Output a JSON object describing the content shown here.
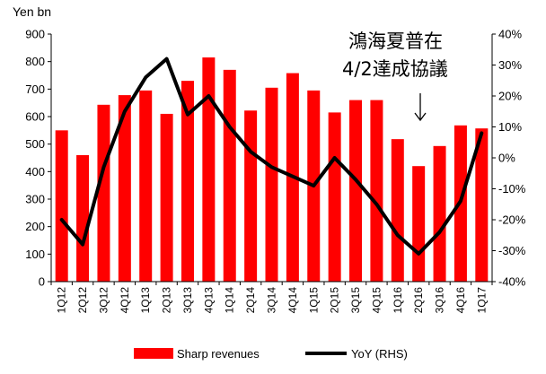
{
  "chart_data": {
    "type": "bar",
    "left_axis_unit": "Yen bn",
    "categories": [
      "1Q12",
      "2Q12",
      "3Q12",
      "4Q12",
      "1Q13",
      "2Q13",
      "3Q13",
      "4Q13",
      "1Q14",
      "2Q14",
      "3Q14",
      "4Q14",
      "1Q15",
      "2Q15",
      "3Q15",
      "4Q15",
      "1Q16",
      "2Q16",
      "3Q16",
      "4Q16",
      "1Q17"
    ],
    "series": [
      {
        "name": "Sharp revenues",
        "type": "bar",
        "axis": "left",
        "color": "#ff0000",
        "values": [
          550,
          460,
          643,
          678,
          695,
          610,
          730,
          815,
          770,
          622,
          705,
          758,
          695,
          615,
          660,
          660,
          518,
          420,
          493,
          568,
          557
        ]
      },
      {
        "name": "YoY (RHS)",
        "type": "line",
        "axis": "right",
        "color": "#000000",
        "values": [
          -20,
          -28,
          -3,
          15,
          26,
          32,
          14,
          20,
          10,
          2,
          -3,
          -6,
          -9,
          0,
          -7,
          -15,
          -25,
          -31,
          -24,
          -14,
          8
        ]
      }
    ],
    "ylim_left": [
      0,
      900
    ],
    "yticks_left": [
      "0",
      "100",
      "200",
      "300",
      "400",
      "500",
      "600",
      "700",
      "800",
      "900"
    ],
    "ylim_right": [
      -40,
      40
    ],
    "yticks_right": [
      "-40%",
      "-30%",
      "-20%",
      "-10%",
      "0%",
      "10%",
      "20%",
      "30%",
      "40%"
    ],
    "annotation": {
      "line1": "鴻海夏普在",
      "line2": "4/2達成協議",
      "arrow_category": "2Q16"
    },
    "legend_position": "bottom",
    "grid": false
  }
}
